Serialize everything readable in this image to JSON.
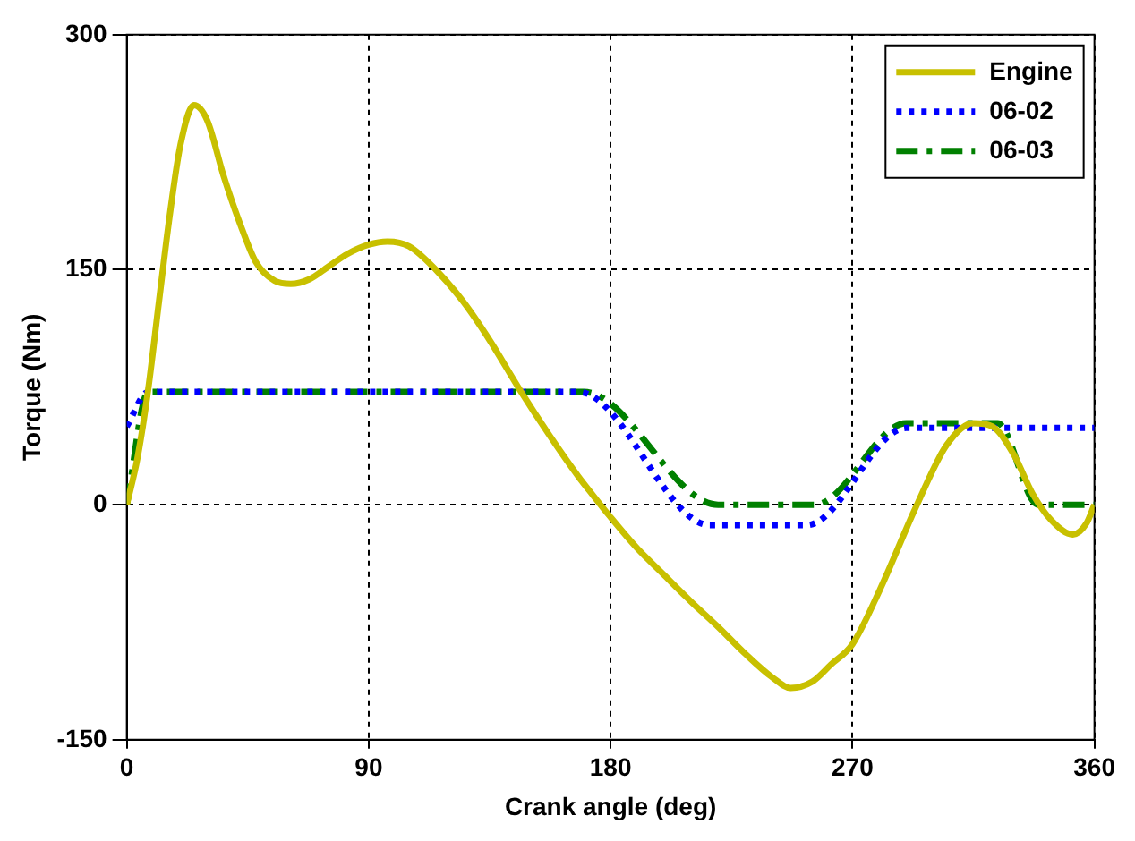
{
  "chart_data": {
    "type": "line",
    "xlabel": "Crank angle (deg)",
    "ylabel": "Torque (Nm)",
    "xlim": [
      0,
      360
    ],
    "ylim": [
      -150,
      300
    ],
    "xticks": [
      0,
      90,
      180,
      270,
      360
    ],
    "yticks": [
      -150,
      0,
      150,
      300
    ],
    "grid": true,
    "legend": "top right",
    "marker": "none",
    "series": [
      {
        "name": "Engine",
        "color": "#c8c000",
        "line_style": "solid",
        "x": [
          0,
          4,
          8,
          12,
          16,
          20,
          25,
          30,
          36,
          42,
          48,
          55,
          61,
          68,
          75,
          82,
          90,
          97,
          105,
          115,
          125,
          135,
          146,
          157,
          168,
          173,
          180,
          190,
          200,
          210,
          220,
          230,
          240,
          247,
          255,
          262,
          270,
          280,
          294,
          305,
          315,
          322,
          330,
          337,
          344,
          352,
          357,
          360
        ],
        "values": [
          0,
          30,
          74,
          130,
          185,
          230,
          255,
          245,
          210,
          180,
          155,
          143,
          141,
          144,
          152,
          160,
          166,
          168,
          165,
          150,
          130,
          105,
          74,
          45,
          18,
          7,
          -8,
          -28,
          -45,
          -62,
          -78,
          -95,
          -110,
          -117,
          -113,
          -102,
          -89,
          -55,
          0,
          38,
          52,
          50,
          32,
          7,
          -10,
          -19,
          -12,
          0
        ]
      },
      {
        "name": "06-02",
        "color": "#0000ff",
        "line_style": "dotted",
        "x": [
          0,
          8,
          168,
          217,
          253,
          290,
          360
        ],
        "values": [
          50,
          72,
          72,
          -13,
          -13,
          49,
          49
        ]
      },
      {
        "name": "06-03",
        "color": "#008000",
        "line_style": "dashed",
        "x": [
          0,
          8,
          170,
          220,
          256,
          290,
          324,
          339,
          360
        ],
        "values": [
          0,
          72,
          72,
          0,
          0,
          52,
          52,
          0,
          0
        ]
      }
    ]
  }
}
